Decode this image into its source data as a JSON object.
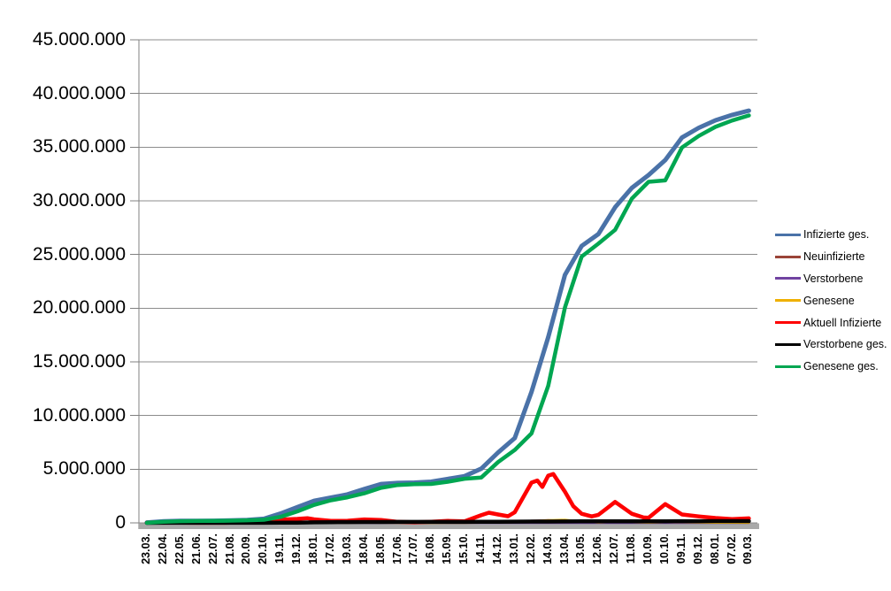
{
  "chart_data": {
    "type": "line",
    "title": "",
    "xlabel": "",
    "ylabel": "",
    "grid": true,
    "legend_position": "right",
    "categories": [
      "23.03.",
      "22.04.",
      "22.05.",
      "21.06.",
      "22.07.",
      "21.08.",
      "20.09.",
      "20.10.",
      "19.11.",
      "19.12.",
      "18.01.",
      "17.02.",
      "19.03.",
      "18.04.",
      "18.05.",
      "17.06.",
      "17.07.",
      "16.08.",
      "15.09.",
      "15.10.",
      "14.11.",
      "14.12.",
      "13.01.",
      "12.02.",
      "14.03.",
      "13.04.",
      "13.05.",
      "12.06.",
      "12.07.",
      "11.08.",
      "10.09.",
      "10.10.",
      "09.11.",
      "09.12.",
      "08.01.",
      "07.02.",
      "09.03."
    ],
    "y_axis": {
      "min": 0,
      "max": 45000000,
      "step": 5000000,
      "tick_labels": [
        "0",
        "5.000.000",
        "10.000.000",
        "15.000.000",
        "20.000.000",
        "25.000.000",
        "30.000.000",
        "35.000.000",
        "40.000.000",
        "45.000.000"
      ]
    },
    "series": [
      {
        "name": "Infizierte ges.",
        "color": "#4A72A8",
        "stroke_width": 5,
        "values": [
          30000,
          150000,
          180000,
          190000,
          200000,
          230000,
          270000,
          380000,
          870000,
          1470000,
          2050000,
          2350000,
          2650000,
          3150000,
          3620000,
          3720000,
          3750000,
          3830000,
          4100000,
          4350000,
          5050000,
          6550000,
          7900000,
          12200000,
          17300000,
          23100000,
          25800000,
          26900000,
          29400000,
          31200000,
          32400000,
          33800000,
          35900000,
          36800000,
          37500000,
          38000000,
          38400000
        ]
      },
      {
        "name": "Neuinfizierte",
        "color": "#9A4438",
        "stroke_width": 2.5,
        "values": [
          5000,
          2000,
          1000,
          500,
          1000,
          1500,
          2500,
          7000,
          20000,
          25000,
          15000,
          8000,
          15000,
          20000,
          10000,
          2000,
          2000,
          7000,
          10000,
          10000,
          40000,
          50000,
          80000,
          200000,
          250000,
          180000,
          40000,
          30000,
          90000,
          40000,
          30000,
          90000,
          40000,
          30000,
          20000,
          15000,
          15000
        ]
      },
      {
        "name": "Verstorbene",
        "color": "#7143A1",
        "stroke_width": 2.5,
        "values": [
          200,
          200,
          100,
          50,
          30,
          30,
          40,
          100,
          400,
          700,
          900,
          600,
          300,
          300,
          200,
          100,
          50,
          50,
          100,
          100,
          200,
          300,
          300,
          250,
          300,
          300,
          200,
          100,
          100,
          100,
          100,
          100,
          150,
          200,
          200,
          150,
          100
        ]
      },
      {
        "name": "Genesene",
        "color": "#EFB000",
        "stroke_width": 2.5,
        "values": [
          2000,
          3000,
          2000,
          1000,
          1000,
          1500,
          2000,
          4000,
          15000,
          25000,
          20000,
          12000,
          10000,
          15000,
          15000,
          5000,
          2000,
          4000,
          8000,
          8000,
          20000,
          40000,
          60000,
          150000,
          240000,
          280000,
          120000,
          40000,
          80000,
          60000,
          30000,
          70000,
          60000,
          40000,
          25000,
          15000,
          12000
        ]
      },
      {
        "name": "Aktuell Infizierte",
        "color": "#FE0000",
        "stroke_width": 4.5,
        "values": [
          20000,
          40000,
          15000,
          8000,
          10000,
          15000,
          25000,
          80000,
          300000,
          370000,
          330000,
          180000,
          200000,
          320000,
          270000,
          100000,
          50000,
          110000,
          180000,
          150000,
          720000,
          780000,
          1000000,
          3750000,
          4400000,
          2900000,
          850000,
          750000,
          1950000,
          850000,
          480000,
          1750000,
          780000,
          600000,
          450000,
          350000,
          420000
        ],
        "detail_points": [
          [
            9.6,
            440000
          ],
          [
            20.45,
            950000
          ],
          [
            21.6,
            620000
          ],
          [
            23.35,
            3950000
          ],
          [
            23.65,
            3350000
          ],
          [
            24.3,
            4550000
          ],
          [
            25.5,
            1550000
          ],
          [
            26.6,
            600000
          ],
          [
            27.5,
            1350000
          ],
          [
            29.7,
            500000
          ]
        ]
      },
      {
        "name": "Verstorbene ges.",
        "color": "#000000",
        "stroke_width": 4.5,
        "values": [
          0,
          5000,
          8000,
          9000,
          9000,
          9000,
          9000,
          10000,
          14000,
          27000,
          47000,
          66000,
          75000,
          80000,
          86000,
          90000,
          91000,
          92000,
          93000,
          94000,
          97000,
          106000,
          115000,
          120000,
          126000,
          132000,
          137000,
          140000,
          142000,
          145000,
          148000,
          150000,
          153000,
          157000,
          162000,
          166000,
          168000
        ]
      },
      {
        "name": "Genesene ges.",
        "color": "#00A651",
        "stroke_width": 4.5,
        "values": [
          10000,
          100000,
          160000,
          170000,
          180000,
          210000,
          240000,
          290000,
          560000,
          1070000,
          1670000,
          2100000,
          2380000,
          2750000,
          3260000,
          3530000,
          3610000,
          3630000,
          3830000,
          4110000,
          4230000,
          5660000,
          6790000,
          8330000,
          12770000,
          20070000,
          24810000,
          26010000,
          27300000,
          30210000,
          31770000,
          31900000,
          34970000,
          36040000,
          36890000,
          37480000,
          37950000
        ]
      }
    ]
  }
}
